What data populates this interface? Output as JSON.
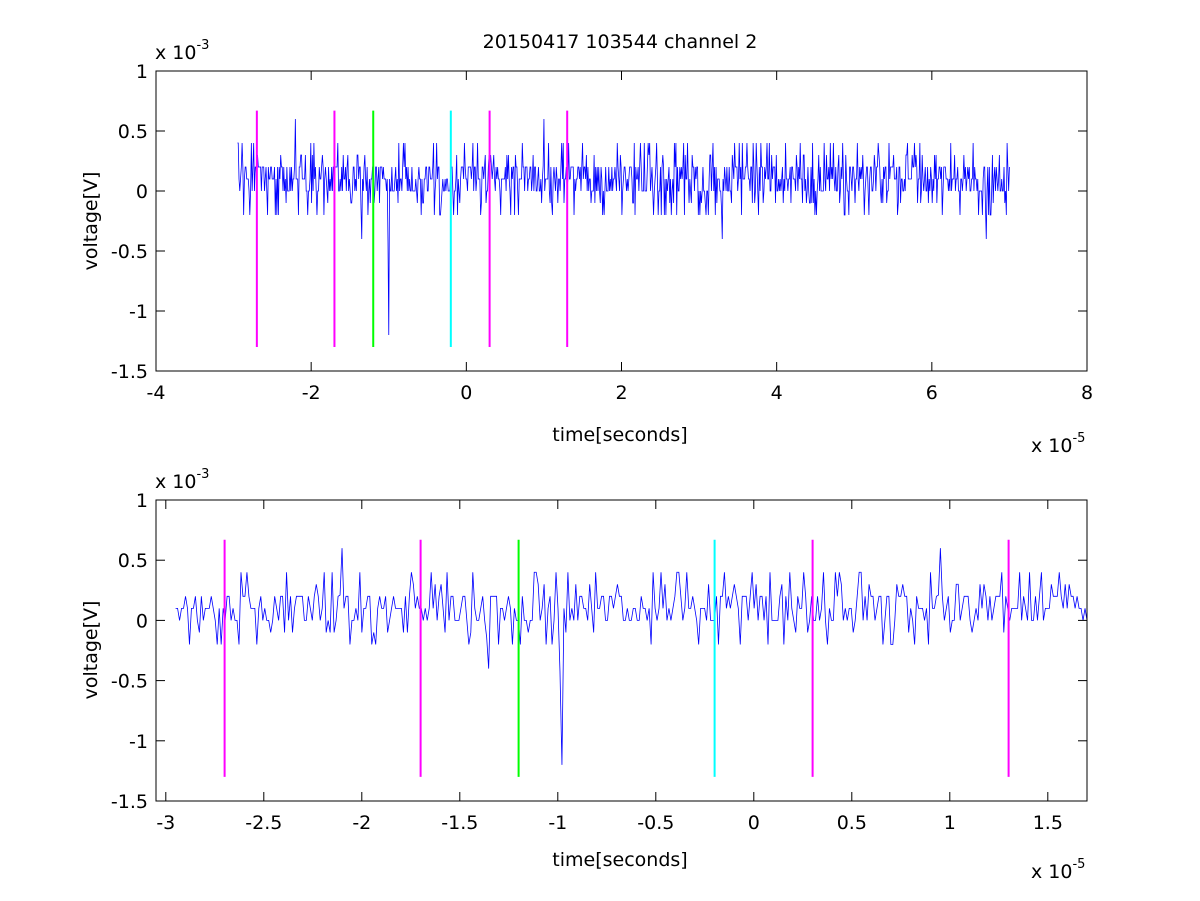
{
  "chart_data": [
    {
      "type": "line",
      "title": "20150417 103544 channel 2",
      "xlabel": "time[seconds]",
      "ylabel": "voltage[V]",
      "x_multiplier_label": "x 10",
      "x_multiplier_exp": "-5",
      "y_multiplier_label": "x 10",
      "y_multiplier_exp": "-3",
      "xlim": [
        -4,
        8
      ],
      "ylim": [
        -1.5,
        1
      ],
      "x_ticks": [
        -4,
        -2,
        0,
        2,
        4,
        6,
        8
      ],
      "x_tick_labels": [
        "-4",
        "-2",
        "0",
        "2",
        "4",
        "6",
        "8"
      ],
      "y_ticks": [
        -1.5,
        -1,
        -0.5,
        0,
        0.5,
        1
      ],
      "y_tick_labels": [
        "-1.5",
        "-1",
        "-0.5",
        "0",
        "0.5",
        "1"
      ],
      "grid": false,
      "signal": {
        "color": "#0000ff",
        "x_range": [
          -2.95,
          7.0
        ],
        "baseline_levels": [
          0.0,
          0.1,
          0.2
        ],
        "spikes": [
          {
            "x": -2.2,
            "y": 0.6
          },
          {
            "x": -1.35,
            "y": -0.4
          },
          {
            "x": -1.0,
            "y": -1.2
          },
          {
            "x": 1.0,
            "y": 0.6
          },
          {
            "x": 3.3,
            "y": -0.4
          },
          {
            "x": 6.7,
            "y": -0.4
          }
        ]
      },
      "markers": [
        {
          "x": -2.7,
          "y_bottom": -1.3,
          "y_top": 0.67,
          "color": "#ff00ff"
        },
        {
          "x": -1.7,
          "y_bottom": -1.3,
          "y_top": 0.67,
          "color": "#ff00ff"
        },
        {
          "x": -1.2,
          "y_bottom": -1.3,
          "y_top": 0.67,
          "color": "#00ff00"
        },
        {
          "x": -0.2,
          "y_bottom": -1.3,
          "y_top": 0.67,
          "color": "#00ffff"
        },
        {
          "x": 0.3,
          "y_bottom": -1.3,
          "y_top": 0.67,
          "color": "#ff00ff"
        },
        {
          "x": 1.3,
          "y_bottom": -1.3,
          "y_top": 0.67,
          "color": "#ff00ff"
        }
      ]
    },
    {
      "type": "line",
      "title": "",
      "xlabel": "time[seconds]",
      "ylabel": "voltage[V]",
      "x_multiplier_label": "x 10",
      "x_multiplier_exp": "-5",
      "y_multiplier_label": "x 10",
      "y_multiplier_exp": "-3",
      "xlim": [
        -3.05,
        1.7
      ],
      "ylim": [
        -1.5,
        1
      ],
      "x_ticks": [
        -3,
        -2.5,
        -2,
        -1.5,
        -1,
        -0.5,
        0,
        0.5,
        1,
        1.5
      ],
      "x_tick_labels": [
        "-3",
        "-2.5",
        "-2",
        "-1.5",
        "-1",
        "-0.5",
        "0",
        "0.5",
        "1",
        "1.5"
      ],
      "y_ticks": [
        -1.5,
        -1,
        -0.5,
        0,
        0.5,
        1
      ],
      "y_tick_labels": [
        "-1.5",
        "-1",
        "-0.5",
        "0",
        "0.5",
        "1"
      ],
      "grid": false,
      "signal": {
        "color": "#0000ff",
        "x_range": [
          -2.95,
          1.7
        ],
        "baseline_levels": [
          0.0,
          0.1,
          0.2
        ],
        "spikes": [
          {
            "x": -2.1,
            "y": 0.6
          },
          {
            "x": -1.35,
            "y": -0.4
          },
          {
            "x": -0.98,
            "y": -1.2
          },
          {
            "x": 0.95,
            "y": 0.6
          }
        ]
      },
      "markers": [
        {
          "x": -2.7,
          "y_bottom": -1.3,
          "y_top": 0.67,
          "color": "#ff00ff"
        },
        {
          "x": -1.7,
          "y_bottom": -1.3,
          "y_top": 0.67,
          "color": "#ff00ff"
        },
        {
          "x": -1.2,
          "y_bottom": -1.3,
          "y_top": 0.67,
          "color": "#00ff00"
        },
        {
          "x": -0.2,
          "y_bottom": -1.3,
          "y_top": 0.67,
          "color": "#00ffff"
        },
        {
          "x": 0.3,
          "y_bottom": -1.3,
          "y_top": 0.67,
          "color": "#ff00ff"
        },
        {
          "x": 1.3,
          "y_bottom": -1.3,
          "y_top": 0.67,
          "color": "#ff00ff"
        }
      ]
    }
  ]
}
